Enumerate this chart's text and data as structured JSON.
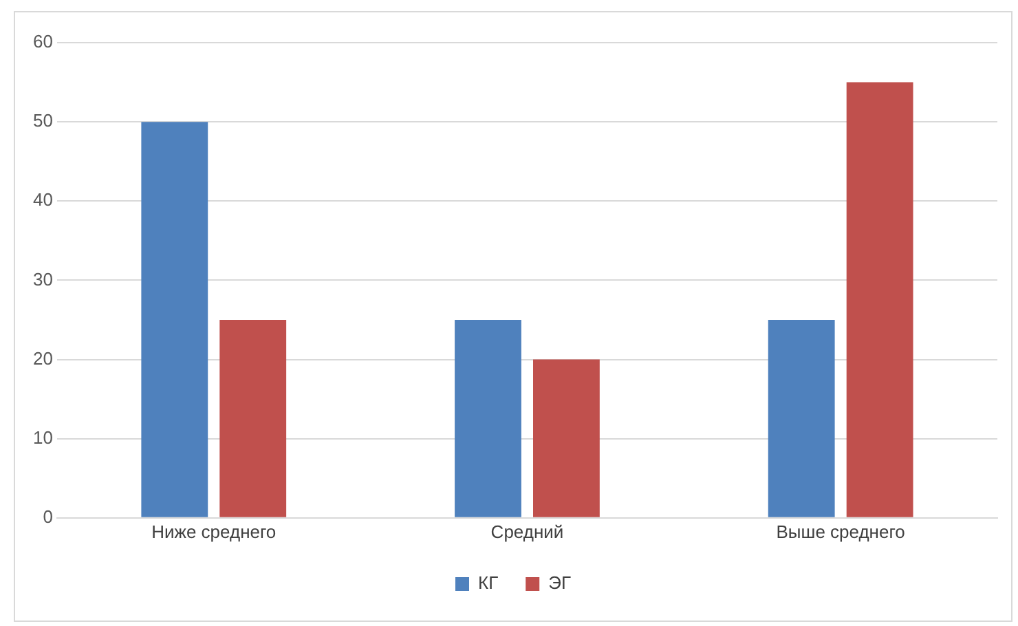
{
  "chart_data": {
    "type": "bar",
    "categories": [
      "Ниже среднего",
      "Средний",
      "Выше среднего"
    ],
    "series": [
      {
        "name": "КГ",
        "color": "#4f81bd",
        "values": [
          50,
          25,
          25
        ]
      },
      {
        "name": "ЭГ",
        "color": "#c0504d",
        "values": [
          25,
          20,
          55
        ]
      }
    ],
    "ylim": [
      0,
      60
    ],
    "yticks": [
      0,
      10,
      20,
      30,
      40,
      50,
      60
    ],
    "grid": "y",
    "legend": "bottom"
  }
}
